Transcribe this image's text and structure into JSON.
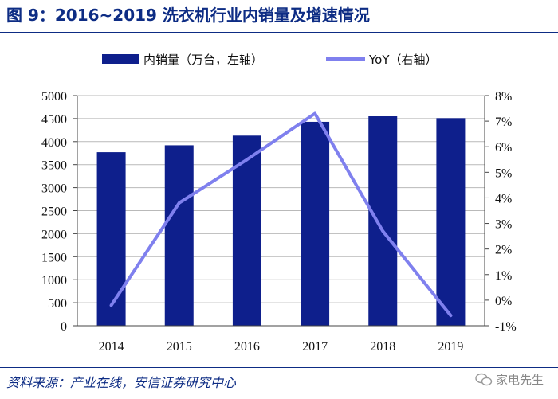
{
  "header": {
    "title": "图 9：2016~2019 洗衣机行业内销量及增速情况"
  },
  "footer": {
    "source": "资料来源：产业在线，安信证券研究中心",
    "watermark": "家电先生"
  },
  "colors": {
    "brand": "#0d2c84",
    "bar": "#0e1f8c",
    "line": "#7f80ee",
    "grid": "#b9b9b9"
  },
  "chart_data": {
    "type": "bar",
    "title": "",
    "categories": [
      "2014",
      "2015",
      "2016",
      "2017",
      "2018",
      "2019"
    ],
    "series": [
      {
        "name": "内销量（万台，左轴）",
        "type": "bar",
        "axis": "left",
        "values": [
          3770,
          3920,
          4130,
          4430,
          4550,
          4510
        ]
      },
      {
        "name": "YoY（右轴）",
        "type": "line",
        "axis": "right",
        "values": [
          -0.2,
          3.8,
          5.5,
          7.3,
          2.7,
          -0.6
        ]
      }
    ],
    "y_left": {
      "min": 0,
      "max": 5000,
      "step": 500,
      "ticks": [
        "0",
        "500",
        "1000",
        "1500",
        "2000",
        "2500",
        "3000",
        "3500",
        "4000",
        "4500",
        "5000"
      ]
    },
    "y_right": {
      "min": -1,
      "max": 8,
      "step": 1,
      "ticks": [
        "-1%",
        "0%",
        "1%",
        "2%",
        "3%",
        "4%",
        "5%",
        "6%",
        "7%",
        "8%"
      ]
    },
    "grid": true,
    "legend_position": "top"
  }
}
